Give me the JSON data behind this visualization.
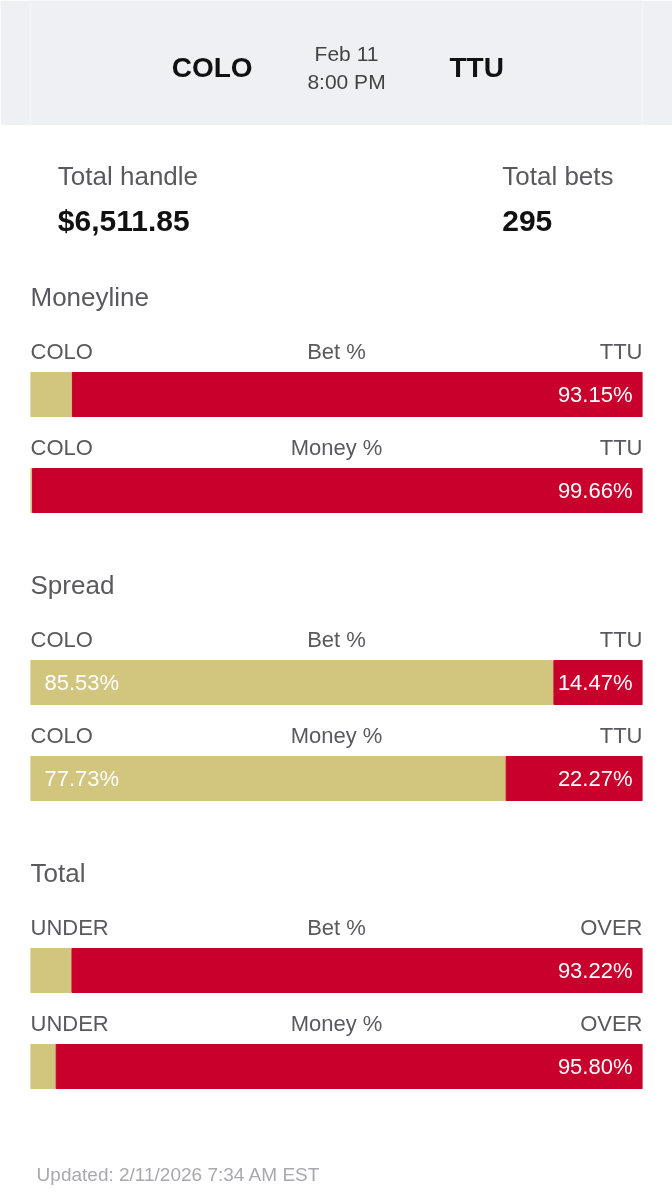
{
  "chart_data": [
    {
      "type": "other",
      "annotations": [
        "COLO",
        "Feb 11",
        "8:00 PM",
        "TTU"
      ]
    },
    {
      "type": "other",
      "annotations": [
        "Total handle",
        "$6,511.85",
        "Total bets",
        "295"
      ]
    },
    {
      "type": "bar",
      "orientation": "horizontal",
      "stacked": true,
      "title": "Moneyline",
      "categories": [
        "Bet %",
        "Money %"
      ],
      "xlim": [
        0,
        100
      ],
      "tick_labels": false,
      "series": [
        {
          "name": "COLO",
          "color": "#d2c67f",
          "values": [
            6.85,
            0.34
          ],
          "value_labels": [
            null,
            null
          ]
        },
        {
          "name": "TTU",
          "color": "#c8002b",
          "values": [
            93.15,
            99.66
          ],
          "value_labels": [
            "93.15%",
            "99.66%"
          ]
        }
      ]
    },
    {
      "type": "bar",
      "orientation": "horizontal",
      "stacked": true,
      "title": "Spread",
      "categories": [
        "Bet %",
        "Money %"
      ],
      "xlim": [
        0,
        100
      ],
      "tick_labels": false,
      "series": [
        {
          "name": "COLO",
          "color": "#d2c67f",
          "values": [
            85.53,
            77.73
          ],
          "value_labels": [
            "85.53%",
            "77.73%"
          ]
        },
        {
          "name": "TTU",
          "color": "#c8002b",
          "values": [
            14.47,
            22.27
          ],
          "value_labels": [
            "14.47%",
            "22.27%"
          ]
        }
      ]
    },
    {
      "type": "bar",
      "orientation": "horizontal",
      "stacked": true,
      "title": "Total",
      "categories": [
        "Bet %",
        "Money %"
      ],
      "xlim": [
        0,
        100
      ],
      "tick_labels": false,
      "annotations": [
        "Updated: 2/11/2026 7:34 AM EST"
      ],
      "series": [
        {
          "name": "UNDER",
          "color": "#d2c67f",
          "values": [
            6.78,
            4.2
          ],
          "value_labels": [
            null,
            null
          ]
        },
        {
          "name": "OVER",
          "color": "#c8002b",
          "values": [
            93.22,
            95.8
          ],
          "value_labels": [
            "93.22%",
            "95.80%"
          ]
        }
      ]
    }
  ]
}
